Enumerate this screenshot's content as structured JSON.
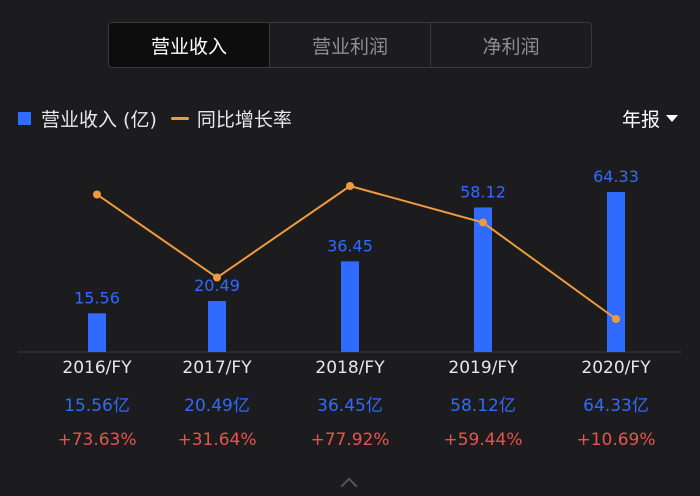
{
  "tabs": [
    {
      "label": "营业收入",
      "active": true
    },
    {
      "label": "营业利润",
      "active": false
    },
    {
      "label": "净利润",
      "active": false
    }
  ],
  "legend": {
    "bar_label": "营业收入 (亿)",
    "line_label": "同比增长率"
  },
  "period_selector": {
    "label": "年报"
  },
  "colors": {
    "bar": "#2f6bff",
    "line": "#f09a3e",
    "growth_text": "#e8534f",
    "background": "#1c1c1e"
  },
  "chart_data": {
    "type": "bar",
    "categories": [
      "2016/FY",
      "2017/FY",
      "2018/FY",
      "2019/FY",
      "2020/FY"
    ],
    "series": [
      {
        "name": "营业收入 (亿)",
        "type": "bar",
        "values": [
          15.56,
          20.49,
          36.45,
          58.12,
          64.33
        ]
      },
      {
        "name": "同比增长率",
        "type": "line",
        "values": [
          73.63,
          31.64,
          77.92,
          59.44,
          10.69
        ]
      }
    ],
    "bar_labels": [
      "15.56",
      "20.49",
      "36.45",
      "58.12",
      "64.33"
    ],
    "grid": false,
    "legend_position": "top-left"
  },
  "table": {
    "years": [
      "2016/FY",
      "2017/FY",
      "2018/FY",
      "2019/FY",
      "2020/FY"
    ],
    "values": [
      "15.56亿",
      "20.49亿",
      "36.45亿",
      "58.12亿",
      "64.33亿"
    ],
    "growth": [
      "+73.63%",
      "+31.64%",
      "+77.92%",
      "+59.44%",
      "+10.69%"
    ]
  }
}
